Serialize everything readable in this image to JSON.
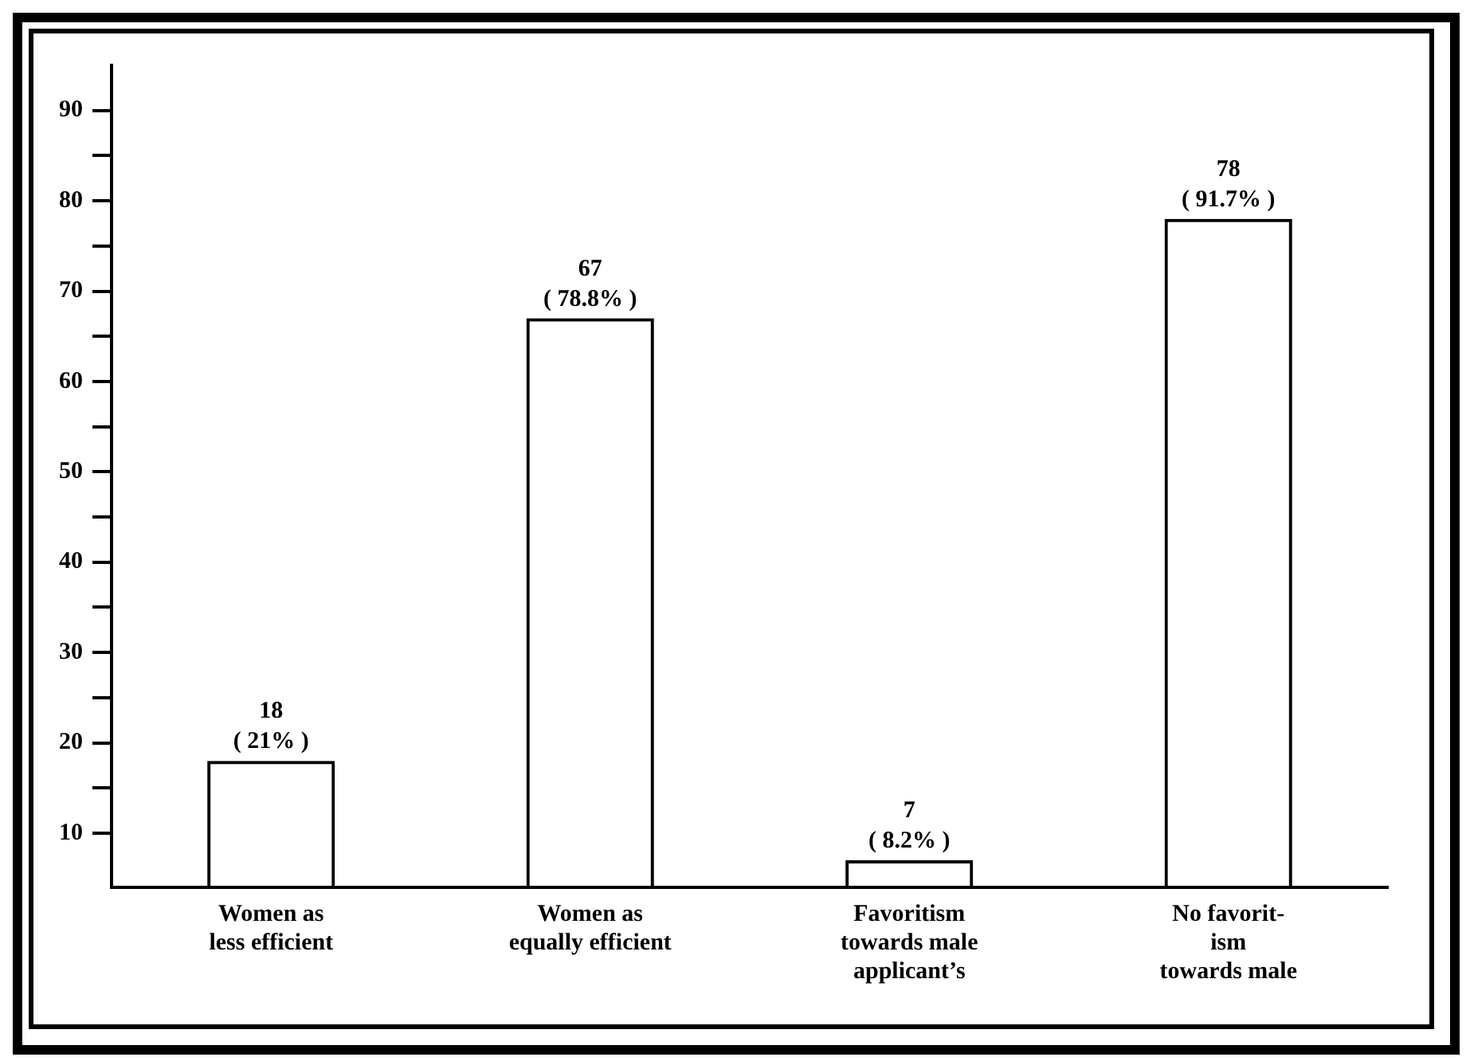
{
  "chart_data": {
    "type": "bar",
    "categories": [
      "Women as\nless efficient",
      "Women as\nequally efficient",
      "Favoritism\ntowards male\napplicant’s",
      "No favorit-\nism\ntowards male"
    ],
    "values": [
      18,
      67,
      7,
      78
    ],
    "value_labels": [
      "18\n( 21% )",
      "67\n( 78.8% )",
      "7\n( 8.2% )",
      "78\n( 91.7% )"
    ],
    "color": "#000000",
    "ylim": [
      4,
      95
    ],
    "yticks": [
      10,
      {
        "value": 15,
        "label": null
      },
      20,
      {
        "value": 25,
        "label": null
      },
      30,
      {
        "value": 35,
        "label": null
      },
      40,
      {
        "value": 45,
        "label": null
      },
      50,
      {
        "value": 55,
        "label": null
      },
      60,
      {
        "value": 65,
        "label": null
      },
      70,
      {
        "value": 75,
        "label": null
      },
      80,
      {
        "value": 85,
        "label": null
      },
      90
    ],
    "grid": false,
    "legend": false
  }
}
